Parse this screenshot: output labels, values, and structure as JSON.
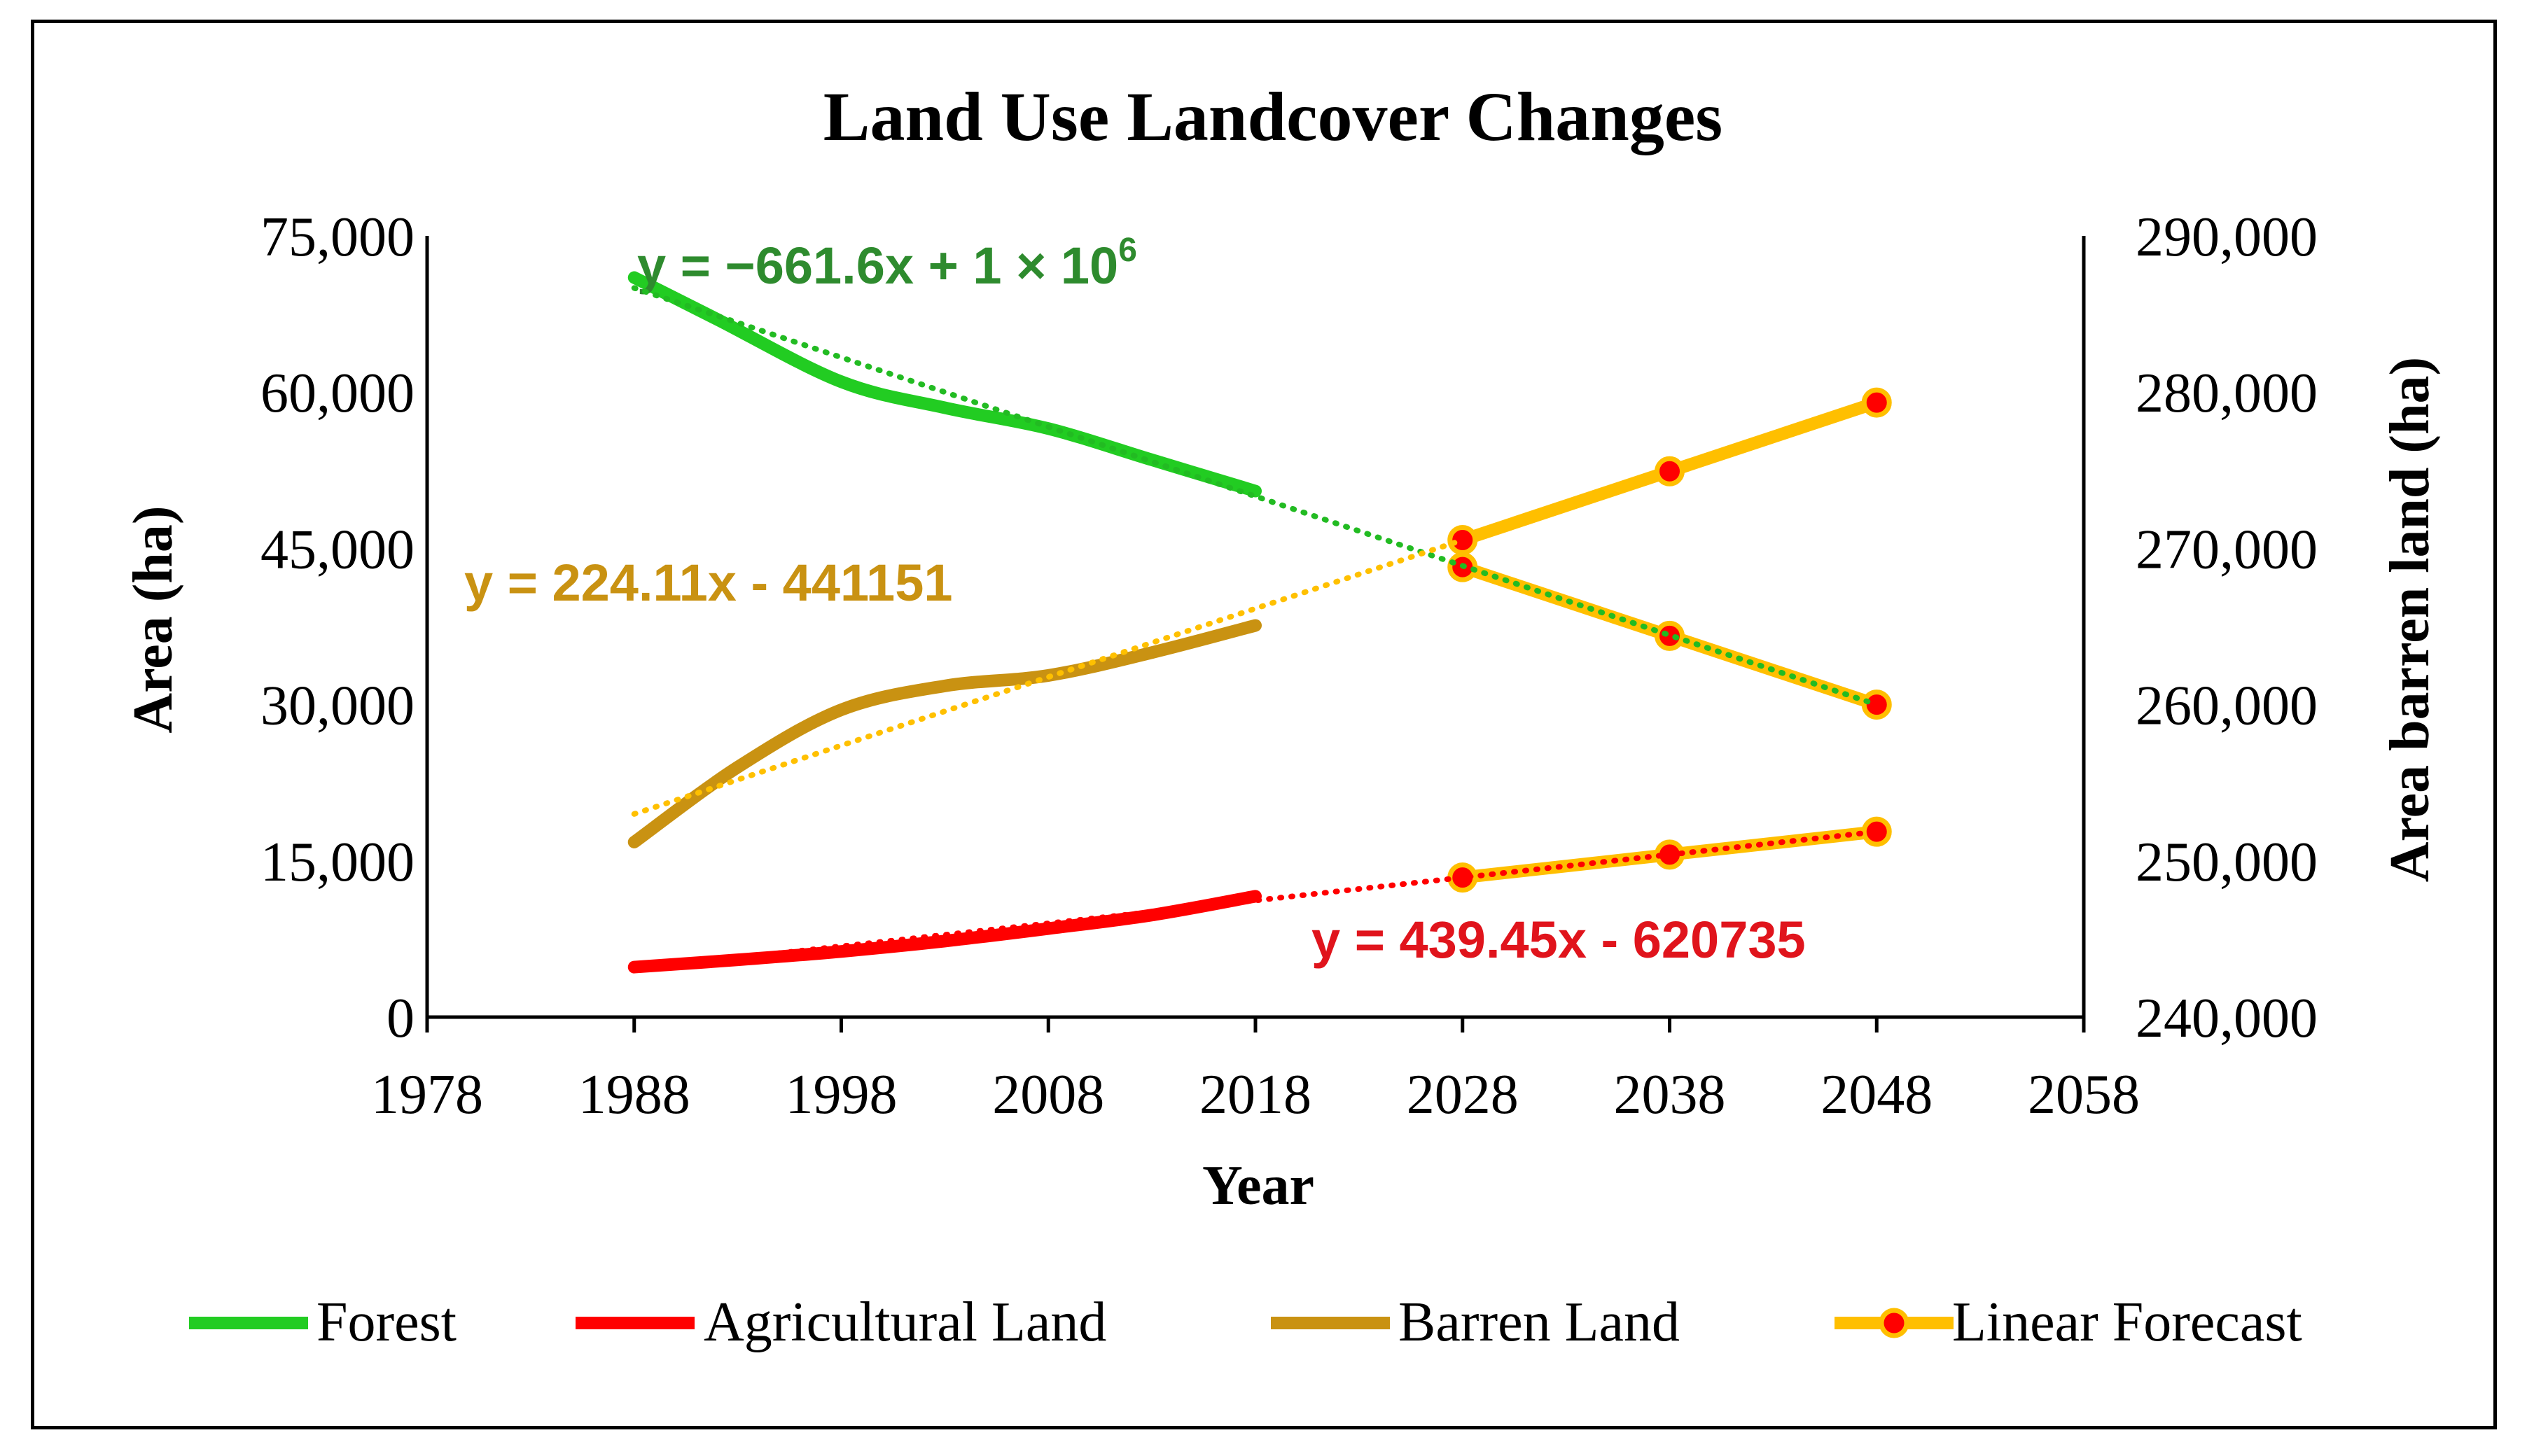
{
  "chart_data": {
    "type": "line",
    "title": "Land Use Landcover  Changes",
    "xlabel": "Year",
    "ylabel": "Area (ha)",
    "y2label": "Area barren land  (ha)",
    "xlim": [
      1978,
      2058
    ],
    "xticks": [
      1978,
      1988,
      1998,
      2008,
      2018,
      2028,
      2038,
      2048,
      2058
    ],
    "ylim": [
      0,
      75000
    ],
    "yticks": [
      0,
      15000,
      30000,
      45000,
      60000,
      75000
    ],
    "ytick_labels": [
      "0",
      "15,000",
      "30,000",
      "45,000",
      "60,000",
      "75,000"
    ],
    "y2lim": [
      240000,
      290000
    ],
    "y2ticks": [
      240000,
      250000,
      260000,
      270000,
      280000,
      290000
    ],
    "y2tick_labels": [
      "240,000",
      "250,000",
      "260,000",
      "270,000",
      "280,000",
      "290,000"
    ],
    "series": [
      {
        "name": "Forest",
        "color": "#22cc22",
        "x": [
          1988,
          1992,
          1998,
          2003,
          2008,
          2013,
          2018
        ],
        "values": [
          71000,
          67000,
          61000,
          58500,
          56500,
          53500,
          50500
        ]
      },
      {
        "name": "Agricultural Land",
        "color": "#ff0000",
        "x": [
          1988,
          1993,
          1998,
          2003,
          2008,
          2013,
          2018
        ],
        "values": [
          4800,
          5500,
          6300,
          7300,
          8500,
          9800,
          11600
        ]
      },
      {
        "name": "Barren Land",
        "color": "#c99212",
        "x": [
          1988,
          1993,
          1998,
          2003,
          2008,
          2013,
          2018
        ],
        "values": [
          16800,
          24000,
          29500,
          31800,
          32800,
          35000,
          37600
        ]
      },
      {
        "name": "Linear Forecast",
        "color": "#ffbf00",
        "marker_color": "#ff0000",
        "segments": [
          {
            "x": [
              2028,
              2038,
              2048
            ],
            "values": [
              45800,
              52400,
              59000
            ]
          },
          {
            "x": [
              2028,
              2038,
              2048
            ],
            "values": [
              43200,
              36600,
              30000
            ]
          },
          {
            "x": [
              2028,
              2038,
              2048
            ],
            "values": [
              13400,
              15600,
              17800
            ]
          }
        ]
      }
    ],
    "trendlines": [
      {
        "color": "#22bb22",
        "x": [
          1988,
          2048
        ],
        "values": [
          70000,
          30000
        ]
      },
      {
        "color": "#ff0000",
        "x": [
          1988,
          2048
        ],
        "values": [
          4600,
          17800
        ]
      },
      {
        "color": "#ffc000",
        "x": [
          1988,
          2028
        ],
        "values": [
          19500,
          45800
        ]
      }
    ],
    "annotations": [
      {
        "id": "forest",
        "text": "y = −661.6x + 1 × 10",
        "sup": "6",
        "color": "#2e8b2e"
      },
      {
        "id": "barren",
        "text": "y = 224.11x - 441151",
        "color": "#c99212"
      },
      {
        "id": "agri",
        "text": "y = 439.45x - 620735",
        "color": "#e0141c"
      }
    ],
    "legend": {
      "position": "bottom",
      "entries": [
        "Forest",
        "Agricultural Land",
        "Barren Land",
        "Linear Forecast"
      ]
    }
  }
}
